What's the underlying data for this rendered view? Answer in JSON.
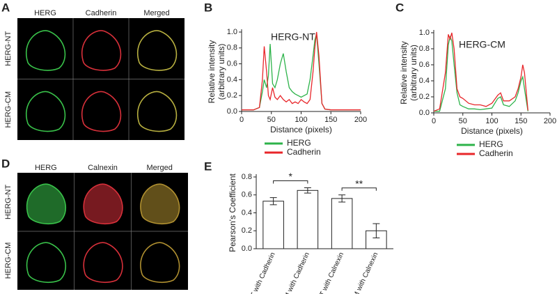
{
  "panel_labels": [
    "A",
    "B",
    "C",
    "D",
    "E"
  ],
  "image_panels": [
    {
      "columns": [
        "HERG",
        "Cadherin",
        "Merged"
      ],
      "rows": [
        "HERG-NT",
        "HERG-CM"
      ]
    },
    {
      "columns": [
        "HERG",
        "Calnexin",
        "Merged"
      ],
      "rows": [
        "HERG-NT",
        "HERG-CM"
      ]
    }
  ],
  "chart_data": [
    {
      "type": "line",
      "annotation": "HERG-NT",
      "ylabel": [
        "Relative intensity",
        "(arbitrary units)"
      ],
      "xlabel": "Distance (pixels)",
      "x": [
        0,
        10,
        20,
        30,
        35,
        38,
        42,
        45,
        48,
        52,
        56,
        60,
        65,
        70,
        75,
        80,
        85,
        90,
        95,
        100,
        105,
        110,
        115,
        120,
        123,
        126,
        130,
        135,
        140,
        150,
        175,
        200
      ],
      "series": [
        {
          "name": "HERG",
          "color": "#2db34a",
          "values": [
            0.02,
            0.02,
            0.02,
            0.05,
            0.25,
            0.4,
            0.3,
            0.45,
            0.85,
            0.35,
            0.3,
            0.4,
            0.6,
            0.73,
            0.5,
            0.3,
            0.25,
            0.22,
            0.2,
            0.18,
            0.2,
            0.22,
            0.4,
            0.7,
            0.9,
            0.98,
            0.6,
            0.1,
            0.03,
            0.02,
            0.02,
            0.02
          ]
        },
        {
          "name": "Cadherin",
          "color": "#e8262a",
          "values": [
            0.02,
            0.02,
            0.02,
            0.05,
            0.4,
            0.82,
            0.5,
            0.2,
            0.15,
            0.3,
            0.18,
            0.15,
            0.2,
            0.15,
            0.12,
            0.15,
            0.1,
            0.12,
            0.1,
            0.15,
            0.12,
            0.1,
            0.15,
            0.5,
            0.8,
            1.0,
            0.7,
            0.1,
            0.03,
            0.02,
            0.02,
            0.02
          ]
        }
      ],
      "xlim": [
        0,
        200
      ],
      "xticks": [
        0,
        50,
        100,
        150,
        200
      ],
      "ylim": [
        0,
        1
      ],
      "yticks": [
        {
          "value": 0,
          "label": "0.0"
        },
        {
          "value": 0.2,
          "label": "0.2"
        },
        {
          "value": 0.4,
          "label": "0.4"
        },
        {
          "value": 0.6,
          "label": "0.6"
        },
        {
          "value": 0.8,
          "label": "0.8"
        },
        {
          "value": 1,
          "label": "1.0"
        }
      ],
      "legend": "bottom"
    },
    {
      "type": "line",
      "annotation": "HERG-CM",
      "ylabel": [
        "Relative intensity",
        "(arbitrary units)"
      ],
      "xlabel": "Distance (pixels)",
      "x": [
        0,
        10,
        20,
        25,
        28,
        31,
        35,
        40,
        45,
        50,
        60,
        70,
        80,
        90,
        100,
        110,
        115,
        120,
        130,
        140,
        145,
        150,
        153,
        156,
        162
      ],
      "series": [
        {
          "name": "HERG",
          "color": "#2db34a",
          "values": [
            0.02,
            0.02,
            0.3,
            0.85,
            0.95,
            0.9,
            0.6,
            0.25,
            0.1,
            0.08,
            0.05,
            0.05,
            0.04,
            0.05,
            0.06,
            0.18,
            0.2,
            0.1,
            0.08,
            0.15,
            0.25,
            0.4,
            0.45,
            0.3,
            0.02
          ]
        },
        {
          "name": "Cadherin",
          "color": "#e8262a",
          "values": [
            0.02,
            0.05,
            0.5,
            0.98,
            0.92,
            1.0,
            0.8,
            0.3,
            0.2,
            0.18,
            0.12,
            0.1,
            0.1,
            0.08,
            0.12,
            0.22,
            0.25,
            0.15,
            0.15,
            0.2,
            0.3,
            0.45,
            0.6,
            0.5,
            0.03
          ]
        }
      ],
      "xlim": [
        0,
        200
      ],
      "xticks": [
        0,
        50,
        100,
        150,
        200
      ],
      "ylim": [
        0,
        1
      ],
      "yticks": [
        {
          "value": 0,
          "label": "0.0"
        },
        {
          "value": 0.2,
          "label": "0.2"
        },
        {
          "value": 0.4,
          "label": "0.4"
        },
        {
          "value": 0.6,
          "label": "0.6"
        },
        {
          "value": 0.8,
          "label": "0.8"
        },
        {
          "value": 1,
          "label": "1.0"
        }
      ],
      "legend": "bottom"
    },
    {
      "type": "bar",
      "ylabel": "Pearson's Coefficient",
      "categories": [
        "NT with Cadherin",
        "CM with Cadherin",
        "NT with Calnexin",
        "CM with Calnexin"
      ],
      "values": [
        0.53,
        0.65,
        0.56,
        0.2
      ],
      "errors": [
        0.04,
        0.03,
        0.04,
        0.08
      ],
      "color": "#ffffff",
      "ylim": [
        0,
        0.8
      ],
      "yticks": [
        {
          "value": 0,
          "label": "0.0"
        },
        {
          "value": 0.2,
          "label": "0.2"
        },
        {
          "value": 0.4,
          "label": "0.4"
        },
        {
          "value": 0.6,
          "label": "0.6"
        },
        {
          "value": 0.8,
          "label": "0.8"
        }
      ],
      "annotations": [
        "*",
        "**"
      ]
    }
  ]
}
